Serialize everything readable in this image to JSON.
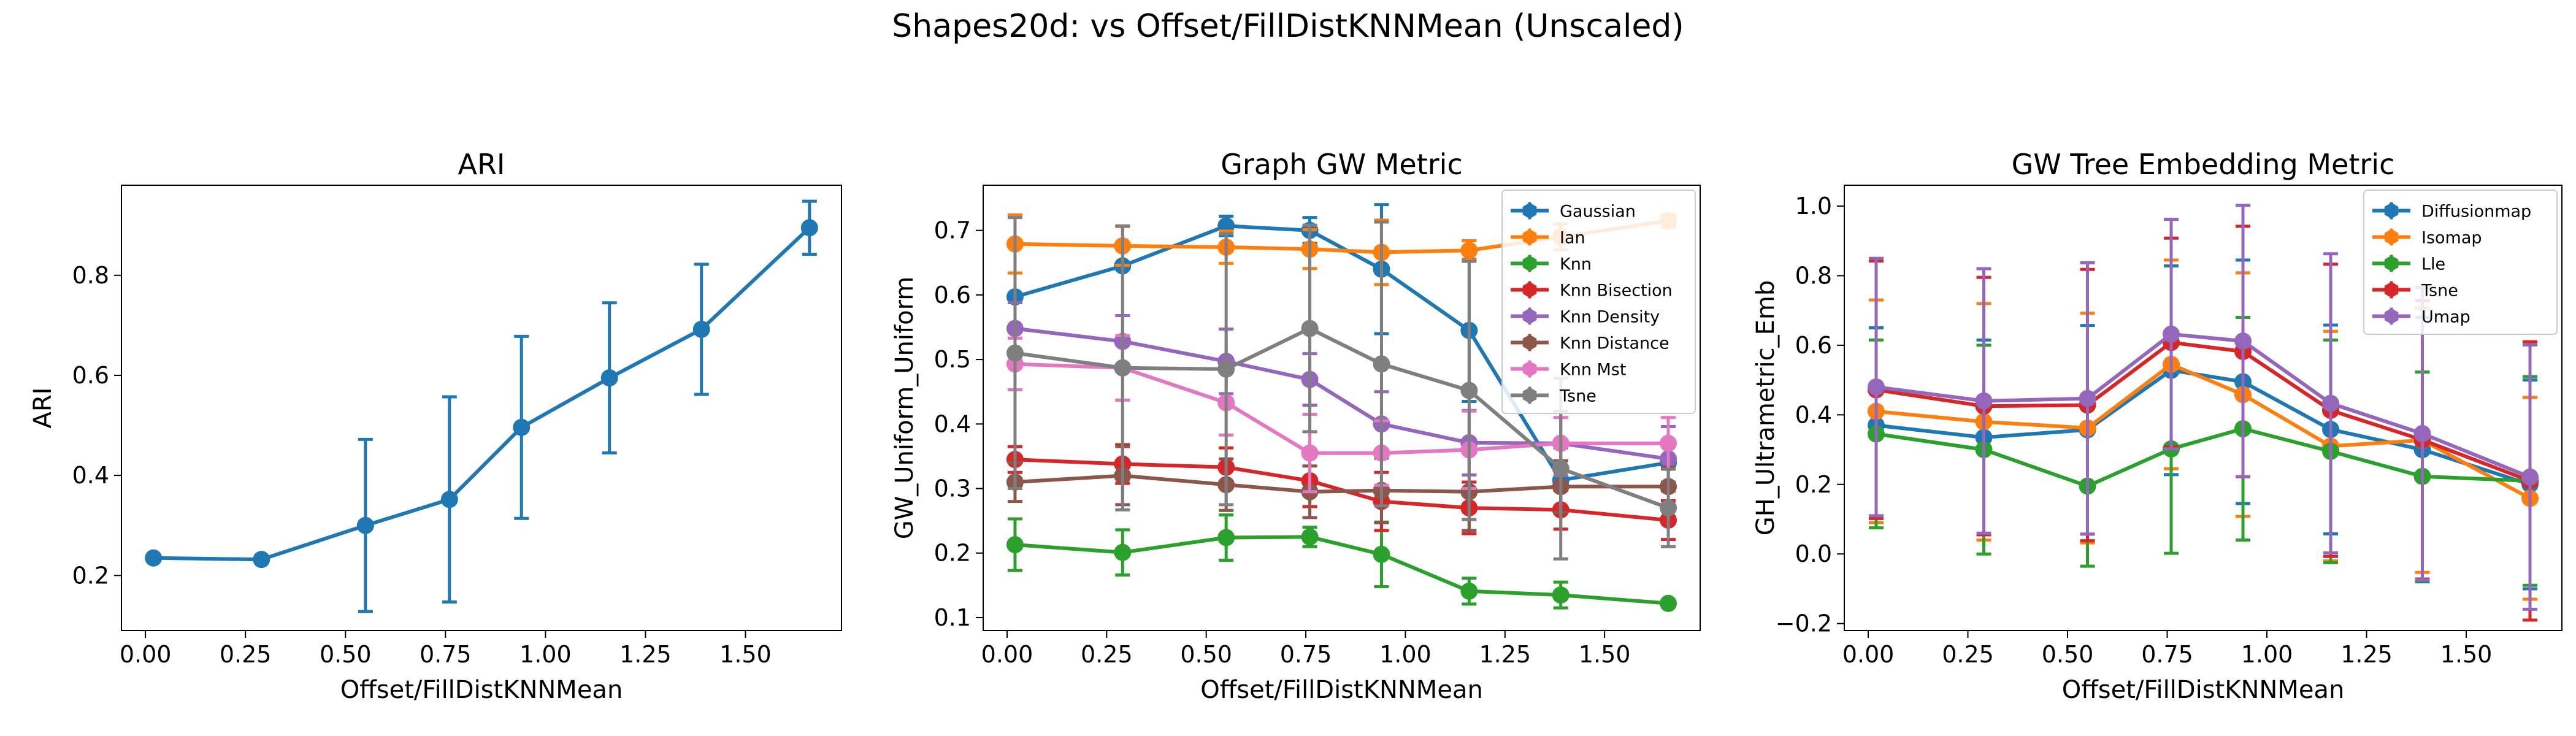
{
  "figure": {
    "suptitle": "Shapes20d: vs Offset/FillDistKNNMean (Unscaled)"
  },
  "colors": {
    "blue": "#1f77b4",
    "orange": "#ff7f0e",
    "green": "#2ca02c",
    "red": "#d62728",
    "purple": "#9467bd",
    "brown": "#8c564b",
    "pink": "#e377c2",
    "gray": "#7f7f7f"
  },
  "chart_data": [
    {
      "type": "line",
      "title": "ARI",
      "xlabel": "Offset/FillDistKNNMean",
      "ylabel": "ARI",
      "xlim": [
        -0.06,
        1.74
      ],
      "ylim": [
        0.09,
        0.98
      ],
      "xticks": [
        0.0,
        0.25,
        0.5,
        0.75,
        1.0,
        1.25,
        1.5
      ],
      "xtick_labels": [
        "0.00",
        "0.25",
        "0.50",
        "0.75",
        "1.00",
        "1.25",
        "1.50"
      ],
      "yticks": [
        0.2,
        0.4,
        0.6,
        0.8
      ],
      "ytick_labels": [
        "0.2",
        "0.4",
        "0.6",
        "0.8"
      ],
      "legend": null,
      "error_bars": true,
      "x": [
        0.02,
        0.29,
        0.55,
        0.76,
        0.94,
        1.16,
        1.39,
        1.66
      ],
      "series": [
        {
          "color": "#1f77b4",
          "values": [
            0.235,
            0.232,
            0.3,
            0.352,
            0.496,
            0.595,
            0.692,
            0.895
          ],
          "errors": [
            0.0,
            0.0,
            0.172,
            0.205,
            0.182,
            0.15,
            0.13,
            0.053
          ]
        }
      ]
    },
    {
      "type": "line",
      "title": "Graph GW Metric",
      "xlabel": "Offset/FillDistKNNMean",
      "ylabel": "GW_Uniform_Uniform",
      "xlim": [
        -0.06,
        1.74
      ],
      "ylim": [
        0.08,
        0.77
      ],
      "xticks": [
        0.0,
        0.25,
        0.5,
        0.75,
        1.0,
        1.25,
        1.5
      ],
      "xtick_labels": [
        "0.00",
        "0.25",
        "0.50",
        "0.75",
        "1.00",
        "1.25",
        "1.50"
      ],
      "yticks": [
        0.1,
        0.2,
        0.3,
        0.4,
        0.5,
        0.6,
        0.7
      ],
      "ytick_labels": [
        "0.1",
        "0.2",
        "0.3",
        "0.4",
        "0.5",
        "0.6",
        "0.7"
      ],
      "legend": "top-right",
      "error_bars": true,
      "x": [
        0.02,
        0.29,
        0.55,
        0.76,
        0.94,
        1.16,
        1.39,
        1.66
      ],
      "series": [
        {
          "name": "Gaussian",
          "color": "#1f77b4",
          "values": [
            0.597,
            0.645,
            0.707,
            0.7,
            0.64,
            0.545,
            0.313,
            0.34
          ],
          "errors": [
            0.0,
            0.0,
            0.015,
            0.02,
            0.1,
            0.11,
            0.05,
            0.03
          ]
        },
        {
          "name": "Ian",
          "color": "#ff7f0e",
          "values": [
            0.679,
            0.676,
            0.674,
            0.671,
            0.666,
            0.669,
            0.69,
            0.715
          ],
          "errors": [
            0.045,
            0.03,
            0.025,
            0.03,
            0.05,
            0.015,
            0.02,
            0.01
          ]
        },
        {
          "name": "Knn",
          "color": "#2ca02c",
          "values": [
            0.213,
            0.201,
            0.224,
            0.225,
            0.198,
            0.141,
            0.135,
            0.122
          ],
          "errors": [
            0.04,
            0.035,
            0.035,
            0.015,
            0.05,
            0.02,
            0.02,
            0.0
          ]
        },
        {
          "name": "Knn Bisection",
          "color": "#d62728",
          "values": [
            0.345,
            0.338,
            0.333,
            0.312,
            0.28,
            0.27,
            0.267,
            0.251
          ],
          "errors": [
            0.02,
            0.03,
            0.03,
            0.04,
            0.045,
            0.04,
            0.03,
            0.03
          ]
        },
        {
          "name": "Knn Density",
          "color": "#9467bd",
          "values": [
            0.548,
            0.528,
            0.497,
            0.469,
            0.4,
            0.371,
            0.37,
            0.346
          ],
          "errors": [
            0.04,
            0.04,
            0.05,
            0.04,
            0.05,
            0.05,
            0.05,
            0.05
          ]
        },
        {
          "name": "Knn Distance",
          "color": "#8c564b",
          "values": [
            0.31,
            0.32,
            0.306,
            0.295,
            0.297,
            0.295,
            0.303,
            0.303
          ],
          "errors": [
            0.03,
            0.045,
            0.04,
            0.04,
            0.05,
            0.06,
            0.04,
            0.03
          ]
        },
        {
          "name": "Knn Mst",
          "color": "#e377c2",
          "values": [
            0.493,
            0.487,
            0.433,
            0.355,
            0.355,
            0.36,
            0.37,
            0.37
          ],
          "errors": [
            0.04,
            0.05,
            0.05,
            0.06,
            0.05,
            0.06,
            0.04,
            0.04
          ]
        },
        {
          "name": "Tsne",
          "color": "#7f7f7f",
          "values": [
            0.51,
            0.487,
            0.485,
            0.548,
            0.493,
            0.452,
            0.331,
            0.27
          ],
          "errors": [
            0.21,
            0.22,
            0.21,
            0.16,
            0.22,
            0.2,
            0.14,
            0.06
          ]
        }
      ]
    },
    {
      "type": "line",
      "title": "GW Tree Embedding Metric",
      "xlabel": "Offset/FillDistKNNMean",
      "ylabel": "GH_Ultrametric_Emb",
      "xlim": [
        -0.06,
        1.74
      ],
      "ylim": [
        -0.22,
        1.06
      ],
      "xticks": [
        0.0,
        0.25,
        0.5,
        0.75,
        1.0,
        1.25,
        1.5
      ],
      "xtick_labels": [
        "0.00",
        "0.25",
        "0.50",
        "0.75",
        "1.00",
        "1.25",
        "1.50"
      ],
      "yticks": [
        -0.2,
        0.0,
        0.2,
        0.4,
        0.6,
        0.8,
        1.0
      ],
      "ytick_labels": [
        "−0.2",
        "0.0",
        "0.2",
        "0.4",
        "0.6",
        "0.8",
        "1.0"
      ],
      "legend": "top-right",
      "error_bars": true,
      "x": [
        0.02,
        0.29,
        0.55,
        0.76,
        0.94,
        1.16,
        1.39,
        1.66
      ],
      "series": [
        {
          "name": "Diffusionmap",
          "color": "#1f77b4",
          "values": [
            0.37,
            0.335,
            0.357,
            0.528,
            0.495,
            0.358,
            0.3,
            0.2
          ],
          "errors": [
            0.28,
            0.28,
            0.3,
            0.3,
            0.35,
            0.3,
            0.38,
            0.3
          ]
        },
        {
          "name": "Isomap",
          "color": "#ff7f0e",
          "values": [
            0.41,
            0.38,
            0.362,
            0.545,
            0.458,
            0.31,
            0.327,
            0.16
          ],
          "errors": [
            0.32,
            0.34,
            0.33,
            0.3,
            0.35,
            0.33,
            0.38,
            0.29
          ]
        },
        {
          "name": "Lle",
          "color": "#2ca02c",
          "values": [
            0.345,
            0.3,
            0.195,
            0.302,
            0.36,
            0.295,
            0.223,
            0.21
          ],
          "errors": [
            0.27,
            0.3,
            0.23,
            0.3,
            0.32,
            0.32,
            0.3,
            0.3
          ]
        },
        {
          "name": "Tsne",
          "color": "#d62728",
          "values": [
            0.472,
            0.425,
            0.428,
            0.608,
            0.582,
            0.413,
            0.328,
            0.21
          ],
          "errors": [
            0.37,
            0.37,
            0.39,
            0.3,
            0.36,
            0.42,
            0.4,
            0.4
          ]
        },
        {
          "name": "Umap",
          "color": "#9467bd",
          "values": [
            0.48,
            0.44,
            0.447,
            0.632,
            0.612,
            0.433,
            0.346,
            0.221
          ],
          "errors": [
            0.37,
            0.38,
            0.39,
            0.33,
            0.39,
            0.43,
            0.42,
            0.38
          ]
        }
      ]
    }
  ]
}
